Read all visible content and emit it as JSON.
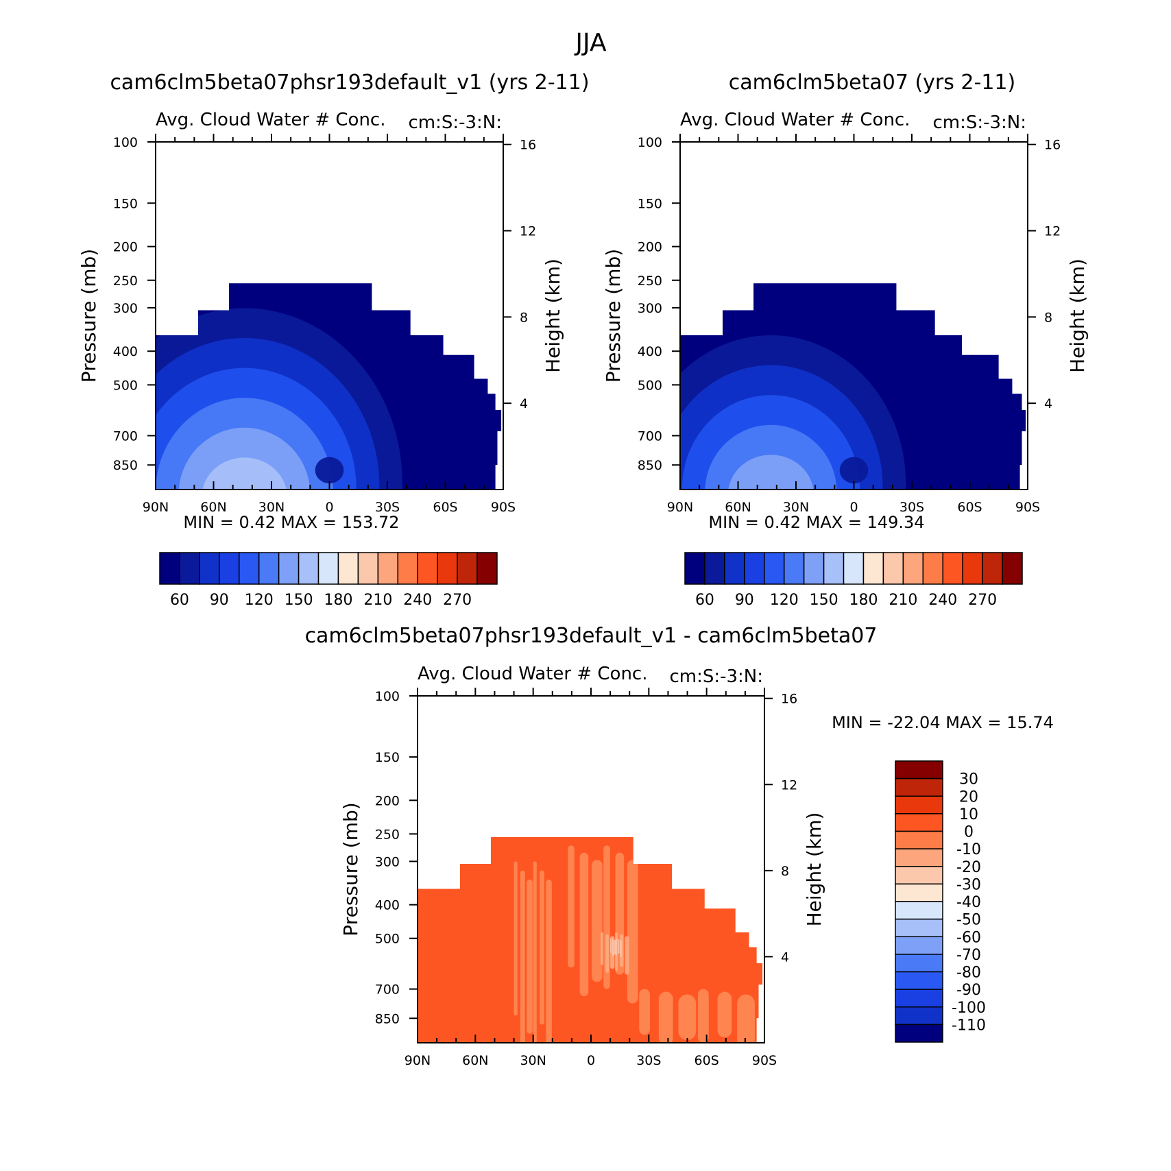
{
  "figure": {
    "title": "JJA"
  },
  "axis_common": {
    "pressure_ticks": [
      100,
      150,
      200,
      250,
      300,
      400,
      500,
      700,
      850
    ],
    "pressure_range": [
      100,
      1000
    ],
    "height_ticks": [
      16,
      12,
      8,
      4
    ],
    "height_scale_km": 7,
    "lat_ticks": [
      "90N",
      "60N",
      "30N",
      "0",
      "30S",
      "60S",
      "90S"
    ],
    "lat_values": [
      90,
      60,
      30,
      0,
      -30,
      -60,
      -90
    ],
    "ylabel": "Pressure (mb)",
    "ylabel_right": "Height (km)",
    "subtitle_left": "Avg. Cloud Water # Conc.",
    "subtitle_right": "cm:S:-3:N:"
  },
  "colors": {
    "model_fill": "#00007f",
    "model_levels_fill": [
      "#0a1a9a",
      "#1032c8",
      "#2050ee",
      "#4a7af5",
      "#7ea1f7",
      "#a8c0f9",
      "#d2e2fb",
      "#fae6d2"
    ],
    "diff_fill_base": "#fe5623",
    "diff_fill_light": "#fe8a55",
    "diff_fill_lighter": "#fdab80",
    "diff_fill_pale": "#fcc8ac"
  },
  "colorbar_model": {
    "colors": [
      "#00007f",
      "#0a1a9a",
      "#1032c8",
      "#1a40e4",
      "#2a58f2",
      "#4a7af5",
      "#7ea1f7",
      "#a8c0f9",
      "#d7e6fb",
      "#fde7d3",
      "#fcc8ac",
      "#fda57d",
      "#fe7c48",
      "#fe5623",
      "#e9380c",
      "#bf2508",
      "#850000"
    ],
    "tick_labels": [
      "60",
      "90",
      "120",
      "150",
      "180",
      "210",
      "240",
      "270"
    ]
  },
  "colorbar_diff": {
    "colors": [
      "#850000",
      "#bf2508",
      "#e9380c",
      "#fe5623",
      "#fe7c48",
      "#fda57d",
      "#fcc8ac",
      "#fde7d3",
      "#d7e6fb",
      "#a8c0f9",
      "#7ea1f7",
      "#4a7af5",
      "#2a58f2",
      "#1a40e4",
      "#1032c8",
      "#00007f"
    ],
    "tick_labels": [
      "30",
      "20",
      "10",
      "0",
      "-10",
      "-20",
      "-30",
      "-40",
      "-50",
      "-60",
      "-70",
      "-80",
      "-90",
      "-100",
      "-110"
    ]
  },
  "chart_data": [
    {
      "type": "contour",
      "title": "cam6clm5beta07phsr193default_v1 (yrs 2-11)",
      "subtitle_left": "Avg. Cloud Water # Conc.",
      "subtitle_right": "cm:S:-3:N:",
      "xlabel": "",
      "ylabel": "Pressure (mb)",
      "ylabel_right": "Height (km)",
      "xlim": [
        90,
        -90
      ],
      "ylim": [
        100,
        1000
      ],
      "min_label": "MIN =",
      "min_value": "0.42",
      "max_label": "MAX =",
      "max_value": "153.72",
      "data_top_profile": [
        {
          "lat": 90,
          "p": 360
        },
        {
          "lat": 68,
          "p": 360
        },
        {
          "lat": 68,
          "p": 305
        },
        {
          "lat": 52,
          "p": 305
        },
        {
          "lat": 52,
          "p": 255
        },
        {
          "lat": -22,
          "p": 255
        },
        {
          "lat": -22,
          "p": 305
        },
        {
          "lat": -42,
          "p": 305
        },
        {
          "lat": -42,
          "p": 360
        },
        {
          "lat": -59,
          "p": 360
        },
        {
          "lat": -59,
          "p": 410
        },
        {
          "lat": -75,
          "p": 410
        },
        {
          "lat": -75,
          "p": 480
        },
        {
          "lat": -82,
          "p": 480
        },
        {
          "lat": -82,
          "p": 530
        },
        {
          "lat": -86,
          "p": 530
        },
        {
          "lat": -86,
          "p": 590
        },
        {
          "lat": -89,
          "p": 590
        },
        {
          "lat": -89,
          "p": 680
        },
        {
          "lat": -87,
          "p": 680
        },
        {
          "lat": -87,
          "p": 850
        },
        {
          "lat": -86,
          "p": 850
        },
        {
          "lat": -86,
          "p": 1000
        }
      ],
      "high_regions": [
        {
          "center_lat": 46,
          "center_p": 900,
          "level": 1
        },
        {
          "center_lat": 45,
          "center_p": 930,
          "level": 3
        },
        {
          "center_lat": 44,
          "center_p": 960,
          "level": 6
        },
        {
          "center_lat": 0,
          "center_p": 880,
          "level": 1
        }
      ]
    },
    {
      "type": "contour",
      "title": "cam6clm5beta07 (yrs 2-11)",
      "subtitle_left": "Avg. Cloud Water # Conc.",
      "subtitle_right": "cm:S:-3:N:",
      "xlabel": "",
      "ylabel": "Pressure (mb)",
      "ylabel_right": "Height (km)",
      "xlim": [
        90,
        -90
      ],
      "ylim": [
        100,
        1000
      ],
      "min_label": "MIN =",
      "min_value": "0.42",
      "max_label": "MAX =",
      "max_value": "149.34",
      "data_top_profile": [
        {
          "lat": 90,
          "p": 360
        },
        {
          "lat": 68,
          "p": 360
        },
        {
          "lat": 68,
          "p": 305
        },
        {
          "lat": 52,
          "p": 305
        },
        {
          "lat": 52,
          "p": 255
        },
        {
          "lat": -22,
          "p": 255
        },
        {
          "lat": -22,
          "p": 305
        },
        {
          "lat": -42,
          "p": 305
        },
        {
          "lat": -42,
          "p": 360
        },
        {
          "lat": -56,
          "p": 360
        },
        {
          "lat": -56,
          "p": 410
        },
        {
          "lat": -75,
          "p": 410
        },
        {
          "lat": -75,
          "p": 480
        },
        {
          "lat": -82,
          "p": 480
        },
        {
          "lat": -82,
          "p": 530
        },
        {
          "lat": -87,
          "p": 530
        },
        {
          "lat": -87,
          "p": 590
        },
        {
          "lat": -89,
          "p": 590
        },
        {
          "lat": -89,
          "p": 680
        },
        {
          "lat": -87,
          "p": 680
        },
        {
          "lat": -87,
          "p": 850
        },
        {
          "lat": -86,
          "p": 850
        },
        {
          "lat": -86,
          "p": 1000
        }
      ],
      "high_regions": [
        {
          "center_lat": 46,
          "center_p": 900,
          "level": 1
        },
        {
          "center_lat": 45,
          "center_p": 930,
          "level": 3
        },
        {
          "center_lat": 43,
          "center_p": 960,
          "level": 5
        },
        {
          "center_lat": 0,
          "center_p": 880,
          "level": 1
        }
      ]
    },
    {
      "type": "contour",
      "title": "cam6clm5beta07phsr193default_v1 - cam6clm5beta07",
      "subtitle_left": "Avg. Cloud Water # Conc.",
      "subtitle_right": "cm:S:-3:N:",
      "xlabel": "",
      "ylabel": "Pressure (mb)",
      "ylabel_right": "Height (km)",
      "xlim": [
        90,
        -90
      ],
      "ylim": [
        100,
        1000
      ],
      "min_label": "MIN =",
      "min_value": "-22.04",
      "max_label": "MAX =",
      "max_value": "15.74",
      "data_top_profile": [
        {
          "lat": 90,
          "p": 360
        },
        {
          "lat": 68,
          "p": 360
        },
        {
          "lat": 68,
          "p": 305
        },
        {
          "lat": 52,
          "p": 305
        },
        {
          "lat": 52,
          "p": 255
        },
        {
          "lat": -22,
          "p": 255
        },
        {
          "lat": -22,
          "p": 305
        },
        {
          "lat": -42,
          "p": 305
        },
        {
          "lat": -42,
          "p": 360
        },
        {
          "lat": -59,
          "p": 360
        },
        {
          "lat": -59,
          "p": 410
        },
        {
          "lat": -75,
          "p": 410
        },
        {
          "lat": -75,
          "p": 480
        },
        {
          "lat": -82,
          "p": 480
        },
        {
          "lat": -82,
          "p": 530
        },
        {
          "lat": -86,
          "p": 530
        },
        {
          "lat": -86,
          "p": 590
        },
        {
          "lat": -89,
          "p": 590
        },
        {
          "lat": -89,
          "p": 680
        },
        {
          "lat": -87,
          "p": 680
        },
        {
          "lat": -87,
          "p": 850
        },
        {
          "lat": -86,
          "p": 850
        },
        {
          "lat": -86,
          "p": 1000
        }
      ],
      "light_bands": [
        {
          "lat_from": 40,
          "lat_to": 20,
          "p_from": 300,
          "p_to": 1000,
          "level": 1
        },
        {
          "lat_from": 12,
          "lat_to": -25,
          "p_from": 270,
          "p_to": 700,
          "level": 1
        },
        {
          "lat_from": -25,
          "lat_to": -86,
          "p_from": 700,
          "p_to": 1000,
          "level": 1
        },
        {
          "lat_from": -5,
          "lat_to": -20,
          "p_from": 480,
          "p_to": 620,
          "level": 2
        },
        {
          "lat_from": -10,
          "lat_to": -16,
          "p_from": 500,
          "p_to": 560,
          "level": 3
        }
      ]
    }
  ]
}
